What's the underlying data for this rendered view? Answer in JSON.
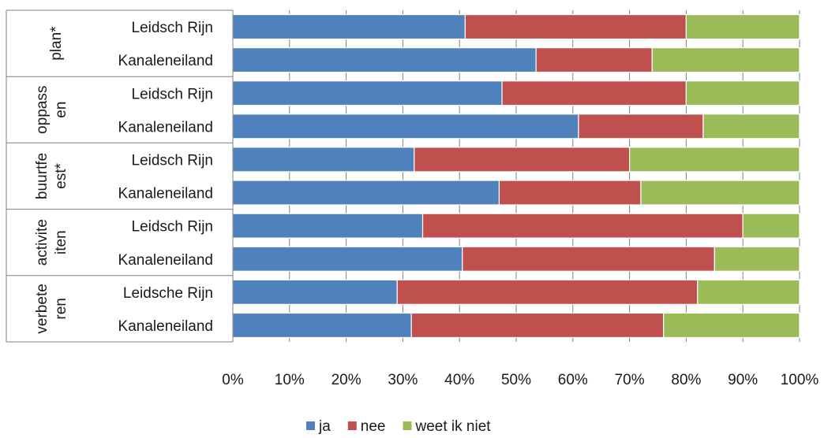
{
  "chart_data": {
    "type": "bar",
    "orientation": "horizontal",
    "stacked": "percent",
    "groups": [
      {
        "label_lines": [
          "plan*"
        ],
        "rows": [
          "Leidsch Rijn",
          "Kanaleneiland"
        ]
      },
      {
        "label_lines": [
          "oppass",
          "en"
        ],
        "rows": [
          "Leidsch Rijn",
          "Kanaleneiland"
        ]
      },
      {
        "label_lines": [
          "buurtfe",
          "est*"
        ],
        "rows": [
          "Leidsch Rijn",
          "Kanaleneiland"
        ]
      },
      {
        "label_lines": [
          "activite",
          "iten"
        ],
        "rows": [
          "Leidsch Rijn",
          "Kanaleneiland"
        ]
      },
      {
        "label_lines": [
          "verbete",
          "ren"
        ],
        "rows": [
          "Leidsche Rijn",
          "Kanaleneiland"
        ]
      }
    ],
    "series": [
      {
        "name": "ja",
        "color": "#4f81bd",
        "values": [
          41,
          53.5,
          47.5,
          61,
          32,
          47,
          33.5,
          40.5,
          29,
          31.5
        ]
      },
      {
        "name": "nee",
        "color": "#c0504d",
        "values": [
          39,
          20.5,
          32.5,
          22,
          38,
          25,
          56.5,
          44.5,
          53,
          44.5
        ]
      },
      {
        "name": "weet ik niet",
        "color": "#9bbb59",
        "values": [
          20,
          26,
          20,
          17,
          30,
          28,
          10,
          15,
          18,
          24
        ]
      }
    ],
    "x_ticks": [
      "0%",
      "10%",
      "20%",
      "30%",
      "40%",
      "50%",
      "60%",
      "70%",
      "80%",
      "90%",
      "100%"
    ],
    "xlim": [
      0,
      100
    ],
    "legend_position": "bottom",
    "grid": false
  }
}
